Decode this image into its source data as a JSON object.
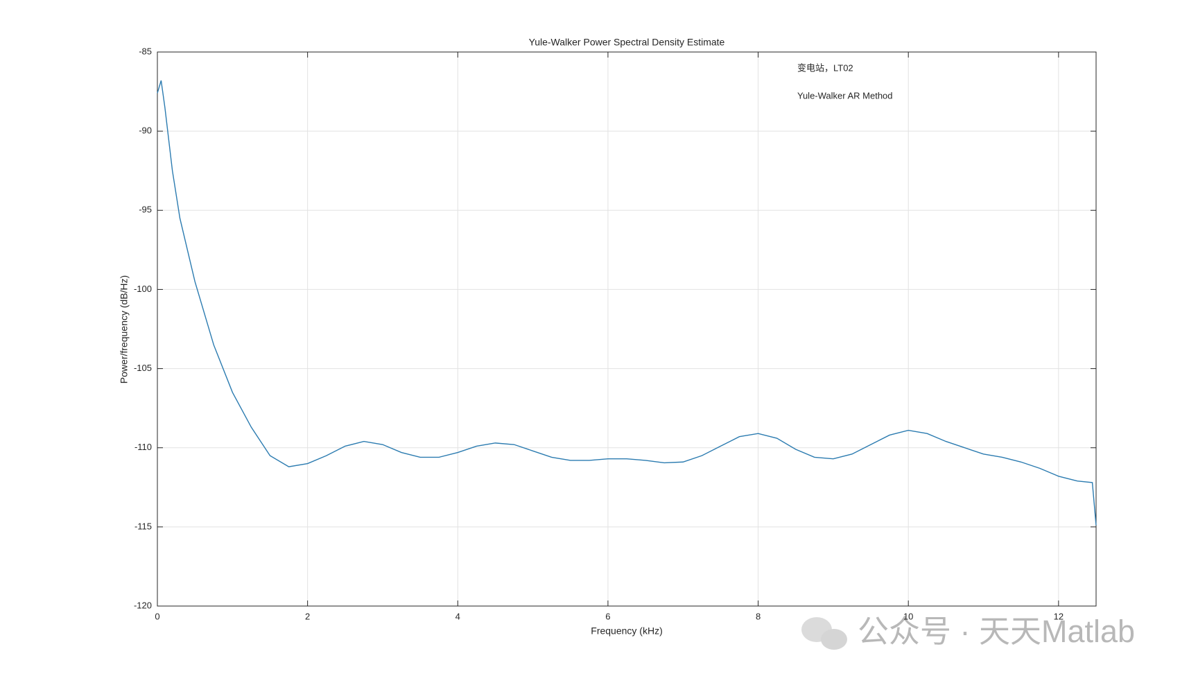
{
  "chart_data": {
    "type": "line",
    "title": "Yule-Walker Power Spectral Density Estimate",
    "x_label": "Frequency (kHz)",
    "y_label": "Power/frequency (dB/Hz)",
    "annotations": [
      "变电站，LT02",
      "Yule-Walker AR Method"
    ],
    "watermark": "公众号 · 天天Matlab",
    "xlim": [
      0,
      12.5
    ],
    "xticks": [
      0,
      2,
      4,
      6,
      8,
      10,
      12
    ],
    "ylim": [
      -120,
      -85
    ],
    "yticks": [
      -120,
      -115,
      -110,
      -105,
      -100,
      -95,
      -90,
      -85
    ],
    "grid": true,
    "x": [
      0,
      0.05,
      0.1,
      0.2,
      0.3,
      0.5,
      0.75,
      1.0,
      1.25,
      1.5,
      1.75,
      2.0,
      2.25,
      2.5,
      2.75,
      3.0,
      3.25,
      3.5,
      3.75,
      4.0,
      4.25,
      4.5,
      4.75,
      5.0,
      5.25,
      5.5,
      5.75,
      6.0,
      6.25,
      6.5,
      6.75,
      7.0,
      7.25,
      7.5,
      7.75,
      8.0,
      8.25,
      8.5,
      8.75,
      9.0,
      9.25,
      9.5,
      9.75,
      10.0,
      10.25,
      10.5,
      10.75,
      11.0,
      11.25,
      11.5,
      11.75,
      12.0,
      12.25,
      12.45,
      12.5
    ],
    "series": [
      {
        "color": "#2b7bb0",
        "values": [
          -87.6,
          -86.8,
          -88.5,
          -92.5,
          -95.5,
          -99.5,
          -103.5,
          -106.5,
          -108.7,
          -110.5,
          -111.2,
          -111.0,
          -110.5,
          -109.9,
          -109.6,
          -109.8,
          -110.3,
          -110.6,
          -110.6,
          -110.3,
          -109.9,
          -109.7,
          -109.8,
          -110.2,
          -110.6,
          -110.8,
          -110.8,
          -110.7,
          -110.7,
          -110.8,
          -110.95,
          -110.9,
          -110.5,
          -109.9,
          -109.3,
          -109.1,
          -109.4,
          -110.1,
          -110.6,
          -110.7,
          -110.4,
          -109.8,
          -109.2,
          -108.9,
          -109.1,
          -109.6,
          -110.0,
          -110.4,
          -110.6,
          -110.9,
          -111.3,
          -111.8,
          -112.1,
          -112.2,
          -114.9
        ]
      }
    ]
  }
}
